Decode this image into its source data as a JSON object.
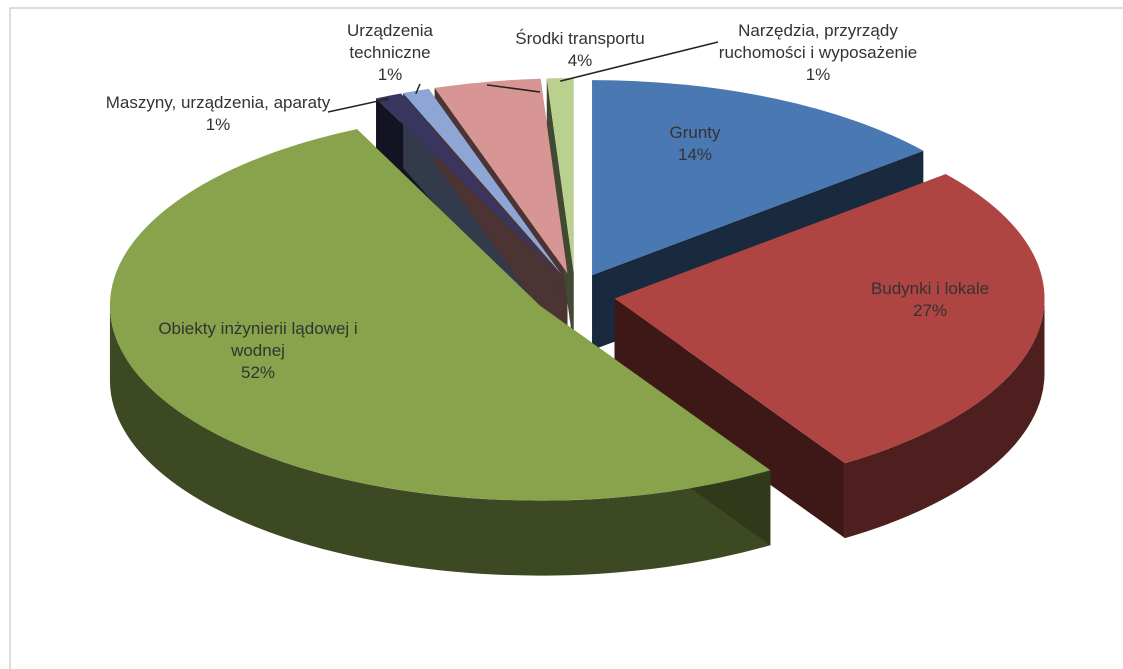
{
  "chart_data": {
    "type": "pie3d",
    "categories": [
      "Grunty",
      "Budynki i lokale",
      "Obiekty inżynierii lądowej i wodnej",
      "Maszyny, urządzenia, aparaty",
      "Urządzenia techniczne",
      "Środki transportu",
      "Narzędzia, przyrządy ruchomości i wyposażenie"
    ],
    "values": [
      14,
      27,
      52,
      1,
      1,
      4,
      1
    ],
    "value_labels": [
      "14%",
      "27%",
      "52%",
      "1%",
      "1%",
      "4%",
      "1%"
    ],
    "colors": [
      "#4a78b2",
      "#ae4542",
      "#88a34b",
      "#3a355f",
      "#8ea6d6",
      "#d79593",
      "#b9d08f"
    ]
  }
}
